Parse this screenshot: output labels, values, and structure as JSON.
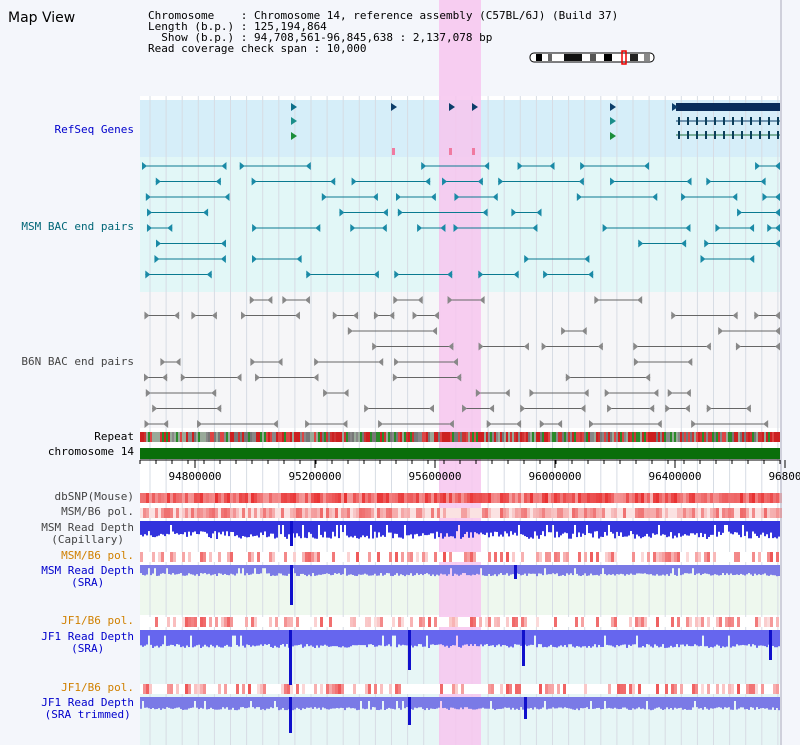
{
  "view_title": "Map View",
  "header": {
    "chromosome": "Chromosome    : Chromosome 14, reference assembly (C57BL/6J) (Build 37)",
    "length": "Length (b.p.) : 125,194,864",
    "show": "  Show (b.p.) : 94,708,561-96,845,638 : 2,137,078 bp",
    "coverage": "Read coverage check span : 10,000"
  },
  "tracks": {
    "refseq": "RefSeq Genes",
    "msm_bac": "MSM BAC end pairs",
    "b6n_bac": "B6N BAC end pairs",
    "repeat": "Repeat",
    "chromosome": "chromosome 14",
    "dbsnp": "dbSNP(Mouse)",
    "msm_b6_pol_1": "MSM/B6 pol.",
    "msm_depth_cap_1": "MSM Read Depth",
    "msm_depth_cap_2": "(Capillary)",
    "msm_b6_pol_2": "MSM/B6 pol.",
    "msm_depth_sra_1": "MSM Read Depth",
    "msm_depth_sra_2": "(SRA)",
    "jf1_b6_pol_1": "JF1/B6 pol.",
    "jf1_depth_sra_1": "JF1 Read Depth",
    "jf1_depth_sra_2": "(SRA)",
    "jf1_b6_pol_2": "JF1/B6 pol.",
    "jf1_depth_trim_1": "JF1 Read Depth",
    "jf1_depth_trim_2": "(SRA trimmed)"
  },
  "axis_ticks": [
    "94800000",
    "95200000",
    "95600000",
    "96000000",
    "96400000",
    "96800"
  ],
  "colors": {
    "highlight": "#f7c6ee",
    "refseq_bg": "#d6eef9",
    "msm_bg": "#e2f7f7",
    "chromosome": "#0a6e0a",
    "snp": "#e83030",
    "depth": "#2b2bdd"
  }
}
